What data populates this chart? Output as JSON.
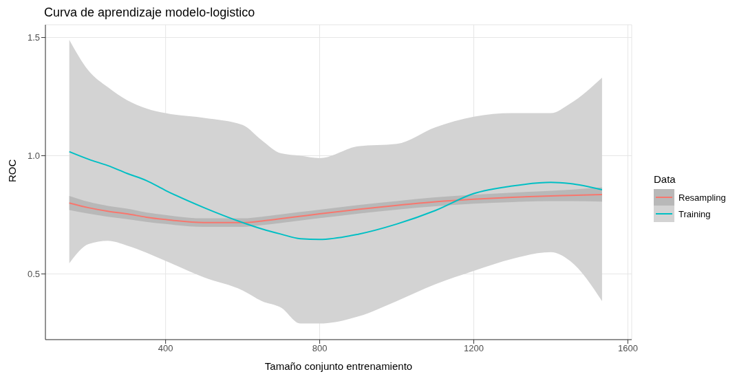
{
  "chart_data": {
    "type": "line",
    "title": "Curva de aprendizaje modelo-logistico",
    "xlabel": "Tamaño conjunto entrenamiento",
    "ylabel": "ROC",
    "legend_title": "Data",
    "x": [
      150,
      200,
      250,
      300,
      350,
      400,
      500,
      600,
      650,
      700,
      750,
      800,
      900,
      1000,
      1100,
      1200,
      1300,
      1400,
      1450,
      1533
    ],
    "series": [
      {
        "name": "Resampling",
        "color": "#f8766d",
        "values": [
          0.8,
          0.78,
          0.765,
          0.754,
          0.74,
          0.73,
          0.717,
          0.717,
          0.724,
          0.734,
          0.744,
          0.754,
          0.773,
          0.79,
          0.805,
          0.816,
          0.824,
          0.83,
          0.832,
          0.836
        ],
        "lower": [
          0.77,
          0.755,
          0.742,
          0.732,
          0.72,
          0.711,
          0.699,
          0.699,
          0.706,
          0.716,
          0.726,
          0.736,
          0.755,
          0.772,
          0.786,
          0.797,
          0.804,
          0.808,
          0.808,
          0.806
        ],
        "upper": [
          0.83,
          0.805,
          0.788,
          0.776,
          0.76,
          0.749,
          0.735,
          0.735,
          0.742,
          0.752,
          0.762,
          0.772,
          0.791,
          0.808,
          0.824,
          0.835,
          0.844,
          0.852,
          0.856,
          0.866
        ]
      },
      {
        "name": "Training",
        "color": "#00bfc4",
        "values": [
          1.017,
          0.985,
          0.958,
          0.925,
          0.895,
          0.853,
          0.78,
          0.717,
          0.69,
          0.668,
          0.649,
          0.646,
          0.668,
          0.711,
          0.768,
          0.84,
          0.872,
          0.887,
          0.882,
          0.856
        ],
        "lower": [
          0.545,
          0.626,
          0.64,
          0.62,
          0.59,
          0.555,
          0.485,
          0.43,
          0.385,
          0.357,
          0.29,
          0.29,
          0.32,
          0.385,
          0.456,
          0.513,
          0.564,
          0.592,
          0.555,
          0.385
        ],
        "upper": [
          1.49,
          1.36,
          1.29,
          1.235,
          1.2,
          1.18,
          1.16,
          1.13,
          1.065,
          1.01,
          1.0,
          0.99,
          1.04,
          1.05,
          1.12,
          1.165,
          1.18,
          1.18,
          1.22,
          1.33
        ]
      }
    ],
    "xlim": [
      88,
      1610
    ],
    "xticks": [
      400,
      800,
      1200,
      1600
    ],
    "ylim": [
      0.222,
      1.554
    ],
    "yticks": [
      0.5,
      {
        "value": 1.0,
        "label": "1.0"
      },
      1.5
    ],
    "grid": true,
    "legend": "right",
    "marker": "none",
    "line_style": "solid"
  }
}
